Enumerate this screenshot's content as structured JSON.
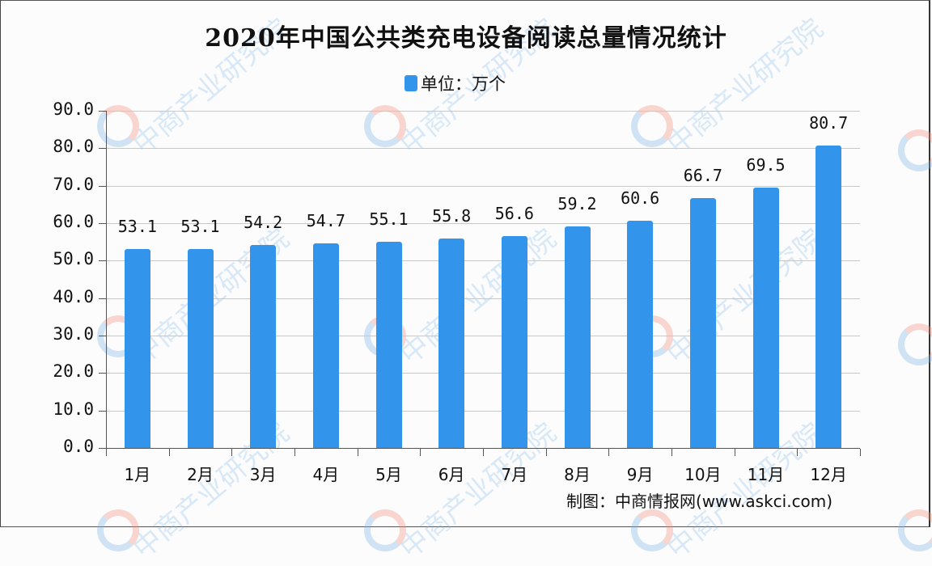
{
  "title": "2020年中国公共类充电设备阅读总量情况统计",
  "legend": {
    "label": "单位：万个",
    "color": "#3394ec"
  },
  "source": "制图：中商情报网(www.askci.com)",
  "watermark": "中商产业研究院",
  "y_ticks": [
    "0.0",
    "10.0",
    "20.0",
    "30.0",
    "40.0",
    "50.0",
    "60.0",
    "70.0",
    "80.0",
    "90.0"
  ],
  "x_labels": [
    "1月",
    "2月",
    "3月",
    "4月",
    "5月",
    "6月",
    "7月",
    "8月",
    "9月",
    "10月",
    "11月",
    "12月"
  ],
  "value_labels": [
    "53.1",
    "53.1",
    "54.2",
    "54.7",
    "55.1",
    "55.8",
    "56.6",
    "59.2",
    "60.6",
    "66.7",
    "69.5",
    "80.7"
  ],
  "chart_data": {
    "type": "bar",
    "title": "2020年中国公共类充电设备阅读总量情况统计",
    "categories": [
      "1月",
      "2月",
      "3月",
      "4月",
      "5月",
      "6月",
      "7月",
      "8月",
      "9月",
      "10月",
      "11月",
      "12月"
    ],
    "series": [
      {
        "name": "单位：万个",
        "values": [
          53.1,
          53.1,
          54.2,
          54.7,
          55.1,
          55.8,
          56.6,
          59.2,
          60.6,
          66.7,
          69.5,
          80.7
        ],
        "color": "#3394ec"
      }
    ],
    "xlabel": "",
    "ylabel": "",
    "ylim": [
      0,
      90
    ],
    "ytick_step": 10,
    "grid": true,
    "legend_position": "top",
    "annotations": [
      "制图：中商情报网(www.askci.com)"
    ]
  }
}
